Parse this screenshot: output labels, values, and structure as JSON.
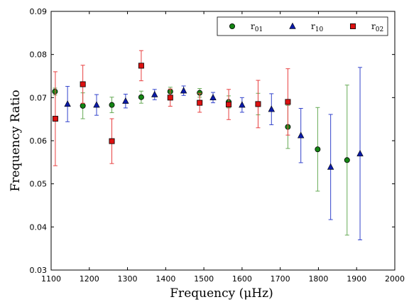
{
  "chart_data": {
    "type": "scatter",
    "xlabel": "Frequency  (μHz)",
    "ylabel": "Frequency Ratio",
    "xlim": [
      1100,
      2000
    ],
    "ylim": [
      0.03,
      0.09
    ],
    "xticks": [
      "1100",
      "1200",
      "1300",
      "1400",
      "1500",
      "1600",
      "1700",
      "1800",
      "1900",
      "2000"
    ],
    "yticks": [
      "0.03",
      "0.04",
      "0.05",
      "0.06",
      "0.07",
      "0.08",
      "0.09"
    ],
    "legend_position": "top-right",
    "series": [
      {
        "name": "r01",
        "label_main": "r",
        "label_sub": "01",
        "marker": "circle",
        "color": "#138413",
        "errcolor": "#66aa55",
        "points": [
          {
            "x": 1110,
            "y": 0.0714,
            "err": 0.0008
          },
          {
            "x": 1183,
            "y": 0.0681,
            "err": 0.003
          },
          {
            "x": 1259,
            "y": 0.0683,
            "err": 0.0018
          },
          {
            "x": 1336,
            "y": 0.0701,
            "err": 0.0014
          },
          {
            "x": 1412,
            "y": 0.0714,
            "err": 0.001
          },
          {
            "x": 1489,
            "y": 0.0711,
            "err": 0.001
          },
          {
            "x": 1565,
            "y": 0.069,
            "err": 0.0014
          },
          {
            "x": 1642,
            "y": 0.0685,
            "err": 0.0025
          },
          {
            "x": 1720,
            "y": 0.0632,
            "err": 0.005
          },
          {
            "x": 1798,
            "y": 0.058,
            "err": 0.0097
          },
          {
            "x": 1875,
            "y": 0.0555,
            "err": 0.0174
          }
        ]
      },
      {
        "name": "r10",
        "label_main": "r",
        "label_sub": "10",
        "marker": "triangle",
        "color": "#0a1aa8",
        "errcolor": "#3344cc",
        "points": [
          {
            "x": 1143,
            "y": 0.0685,
            "err": 0.0041
          },
          {
            "x": 1219,
            "y": 0.0683,
            "err": 0.0024
          },
          {
            "x": 1295,
            "y": 0.0692,
            "err": 0.0016
          },
          {
            "x": 1371,
            "y": 0.0707,
            "err": 0.0012
          },
          {
            "x": 1447,
            "y": 0.0716,
            "err": 0.0011
          },
          {
            "x": 1524,
            "y": 0.07,
            "err": 0.0012
          },
          {
            "x": 1600,
            "y": 0.0683,
            "err": 0.0017
          },
          {
            "x": 1677,
            "y": 0.0673,
            "err": 0.0036
          },
          {
            "x": 1754,
            "y": 0.0612,
            "err": 0.0063
          },
          {
            "x": 1832,
            "y": 0.0539,
            "err": 0.0122
          },
          {
            "x": 1909,
            "y": 0.057,
            "err": 0.02
          }
        ]
      },
      {
        "name": "r02",
        "label_main": "r",
        "label_sub": "02",
        "marker": "square",
        "color": "#dd1111",
        "errcolor": "#e84040",
        "points": [
          {
            "x": 1111,
            "y": 0.0651,
            "err": 0.0109
          },
          {
            "x": 1183,
            "y": 0.0731,
            "err": 0.0044
          },
          {
            "x": 1259,
            "y": 0.0599,
            "err": 0.0052
          },
          {
            "x": 1336,
            "y": 0.0774,
            "err": 0.0035
          },
          {
            "x": 1412,
            "y": 0.07,
            "err": 0.002
          },
          {
            "x": 1489,
            "y": 0.0688,
            "err": 0.0022
          },
          {
            "x": 1565,
            "y": 0.0684,
            "err": 0.0035
          },
          {
            "x": 1642,
            "y": 0.0685,
            "err": 0.0055
          },
          {
            "x": 1720,
            "y": 0.069,
            "err": 0.0077
          }
        ]
      }
    ]
  }
}
